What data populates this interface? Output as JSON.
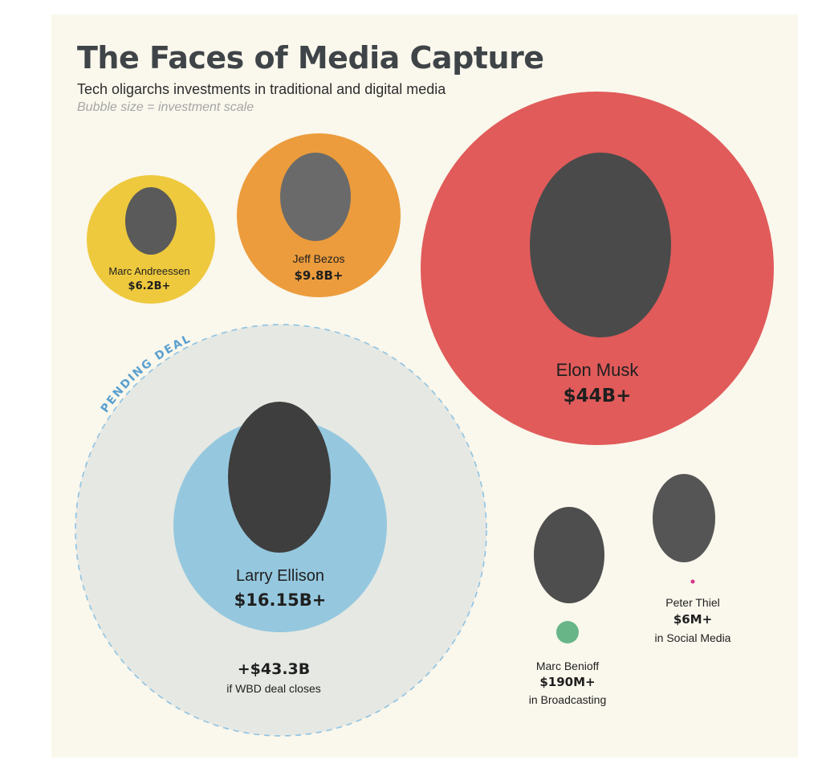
{
  "header": {
    "title": "The Faces of Media Capture",
    "subtitle": "Tech oligarchs investments in traditional and digital media",
    "note": "Bubble size = investment scale"
  },
  "chart_data": {
    "type": "bubble",
    "title": "The Faces of Media Capture",
    "subtitle": "Tech oligarchs investments in traditional and digital media",
    "size_encoding": "Bubble size = investment scale",
    "unit": "USD",
    "series": [
      {
        "name": "Marc Andreessen",
        "label": "$6.2B+",
        "value_billions": 6.2,
        "sector": "",
        "color": "#eec93e"
      },
      {
        "name": "Jeff Bezos",
        "label": "$9.8B+",
        "value_billions": 9.8,
        "sector": "",
        "color": "#ec9c3c"
      },
      {
        "name": "Elon Musk",
        "label": "$44B+",
        "value_billions": 44,
        "sector": "",
        "color": "#e05b5a"
      },
      {
        "name": "Larry Ellison",
        "label": "$16.15B+",
        "value_billions": 16.15,
        "sector": "",
        "color": "#95c8df",
        "pending": {
          "tag": "PENDING DEAL",
          "label": "+$43.3B",
          "value_billions": 43.3,
          "note": "if WBD deal closes",
          "color": "#e6e8e3",
          "border": "#8ec3e3"
        }
      },
      {
        "name": "Marc Benioff",
        "label": "$190M+",
        "value_billions": 0.19,
        "sector": "in Broadcasting",
        "color": "#68b688"
      },
      {
        "name": "Peter Thiel",
        "label": "$6M+",
        "value_billions": 0.006,
        "sector": "in Social Media",
        "color": "#d6338a"
      }
    ]
  }
}
